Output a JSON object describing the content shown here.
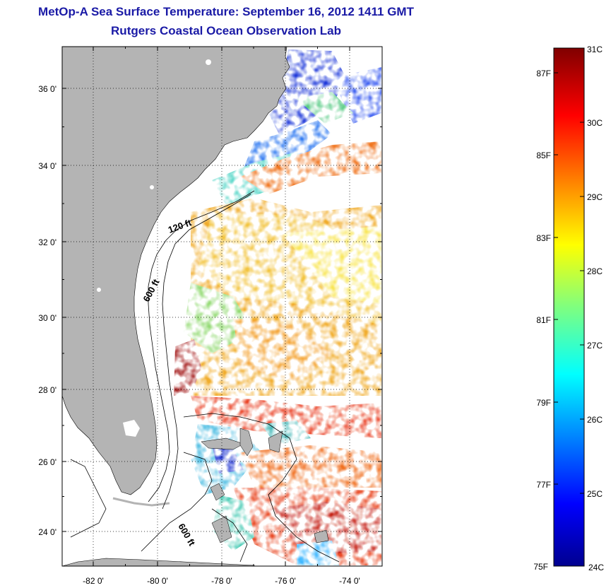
{
  "title": {
    "line1": "MetOp-A Sea Surface Temperature:  September 16, 2012 1411 GMT",
    "line2": "Rutgers Coastal Ocean Observation Lab"
  },
  "map": {
    "lat_labels": [
      "36 0'",
      "34 0'",
      "32 0'",
      "30 0'",
      "28 0'",
      "26 0'",
      "24 0'"
    ],
    "lon_labels": [
      "-82 0'",
      "-80 0'",
      "-78 0'",
      "-76 0'",
      "-74 0'"
    ],
    "contour_labels": [
      "120 ft",
      "600 ft",
      "600 ft"
    ],
    "lat_range": [
      23,
      37.2
    ],
    "lon_range": [
      -83,
      -73
    ],
    "grid": "dotted",
    "colors": {
      "land": "#b4b4b4",
      "no_data": "#ffffff"
    }
  },
  "colorbar": {
    "celsius_labels": [
      "31C",
      "30C",
      "29C",
      "28C",
      "27C",
      "26C",
      "25C",
      "24C"
    ],
    "fahrenheit_labels": [
      "87F",
      "85F",
      "83F",
      "81F",
      "79F",
      "77F",
      "75F"
    ],
    "range_c": [
      24,
      31
    ],
    "colormap": "jet"
  }
}
